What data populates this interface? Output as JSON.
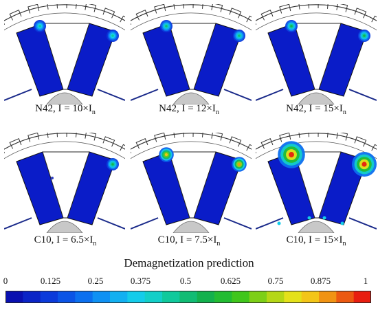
{
  "panels": [
    {
      "material": "N42",
      "current_multiplier": "10",
      "hotspots": [
        {
          "side": "left",
          "level": 0.45,
          "size": 1
        },
        {
          "side": "right",
          "level": 0.45,
          "size": 1
        }
      ]
    },
    {
      "material": "N42",
      "current_multiplier": "12",
      "hotspots": [
        {
          "side": "left",
          "level": 0.5,
          "size": 1
        },
        {
          "side": "right",
          "level": 0.5,
          "size": 1
        }
      ]
    },
    {
      "material": "N42",
      "current_multiplier": "15",
      "hotspots": [
        {
          "side": "left",
          "level": 0.55,
          "size": 1
        },
        {
          "side": "right",
          "level": 0.55,
          "size": 1
        }
      ]
    },
    {
      "material": "C10",
      "current_multiplier": "6.5",
      "hotspots": [
        {
          "side": "right",
          "level": 0.55,
          "size": 1
        }
      ]
    },
    {
      "material": "C10",
      "current_multiplier": "7.5",
      "hotspots": [
        {
          "side": "left",
          "level": 0.85,
          "size": 1.2
        },
        {
          "side": "right",
          "level": 0.9,
          "size": 1.2
        }
      ]
    },
    {
      "material": "C10",
      "current_multiplier": "15",
      "hotspots": [
        {
          "side": "left",
          "level": 1,
          "size": 2.2
        },
        {
          "side": "right",
          "level": 1,
          "size": 2
        }
      ]
    }
  ],
  "caption_template": {
    "equals": "I = ",
    "times": "×I",
    "subscript": "n"
  },
  "colorbar": {
    "title": "Demagnetization prediction",
    "ticks": [
      "0",
      "0.125",
      "0.25",
      "0.375",
      "0.5",
      "0.625",
      "0.75",
      "0.875",
      "1"
    ],
    "segments": 21,
    "colors": [
      "#0a10b0",
      "#0b35d8",
      "#0b64ee",
      "#10a0f5",
      "#15d4e8",
      "#10c898",
      "#12b050",
      "#2fc41e",
      "#9fd314",
      "#f5e41b",
      "#f08a12",
      "#e81e10"
    ]
  }
}
